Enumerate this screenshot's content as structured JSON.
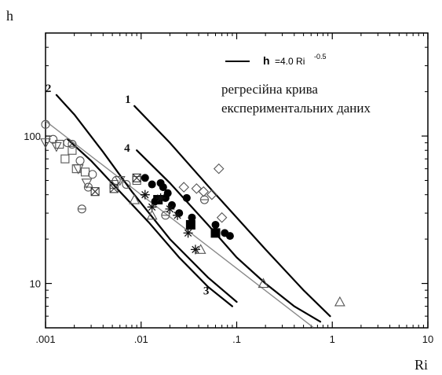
{
  "chart_data": {
    "type": "scatter",
    "xlabel": "Ri",
    "ylabel": "h",
    "xscale": "log",
    "yscale": "log",
    "xlim": [
      0.001,
      10
    ],
    "ylim": [
      5,
      500
    ],
    "x_ticks": [
      ".001",
      ".01",
      ".1",
      "1",
      "10"
    ],
    "y_ticks": [
      "10",
      "100"
    ],
    "legend": {
      "line_label": "h",
      "formula": "=4.0 Ri",
      "formula_exponent": "-0.5",
      "description_line1": "регресійна крива",
      "description_line2": "експериментальних даних"
    },
    "regression": {
      "coefficient": 4.0,
      "exponent": -0.5,
      "x": [
        0.001,
        0.63
      ]
    },
    "curves": [
      {
        "label": "1",
        "points": [
          [
            0.0085,
            160
          ],
          [
            0.02,
            90
          ],
          [
            0.05,
            46
          ],
          [
            0.1,
            28
          ],
          [
            0.2,
            17
          ],
          [
            0.5,
            9
          ],
          [
            0.95,
            6
          ]
        ]
      },
      {
        "label": "2",
        "points": [
          [
            0.0013,
            190
          ],
          [
            0.002,
            140
          ],
          [
            0.004,
            78
          ],
          [
            0.008,
            42
          ],
          [
            0.02,
            20
          ],
          [
            0.05,
            11
          ],
          [
            0.1,
            7.5
          ]
        ]
      },
      {
        "label": "3",
        "points": [
          [
            0.0017,
            95
          ],
          [
            0.003,
            68
          ],
          [
            0.006,
            42
          ],
          [
            0.012,
            26
          ],
          [
            0.025,
            15
          ],
          [
            0.05,
            9.5
          ],
          [
            0.09,
            7
          ]
        ]
      },
      {
        "label": "4",
        "points": [
          [
            0.009,
            80
          ],
          [
            0.02,
            48
          ],
          [
            0.05,
            25
          ],
          [
            0.1,
            15
          ],
          [
            0.2,
            10
          ],
          [
            0.4,
            7
          ],
          [
            0.75,
            5.5
          ]
        ]
      }
    ],
    "series": [
      {
        "marker": "open-circle",
        "points": [
          [
            0.001,
            120
          ],
          [
            0.0012,
            95
          ],
          [
            0.0017,
            90
          ],
          [
            0.0019,
            88
          ],
          [
            0.0023,
            68
          ],
          [
            0.0031,
            55
          ],
          [
            0.0055,
            50
          ],
          [
            0.007,
            47
          ]
        ]
      },
      {
        "marker": "open-square",
        "points": [
          [
            0.0014,
            88
          ],
          [
            0.0016,
            70
          ],
          [
            0.0019,
            80
          ],
          [
            0.0021,
            60
          ],
          [
            0.0026,
            57
          ],
          [
            0.0052,
            47
          ],
          [
            0.009,
            50
          ]
        ]
      },
      {
        "marker": "open-triangle-down",
        "points": [
          [
            0.001,
            90
          ],
          [
            0.0013,
            85
          ],
          [
            0.0022,
            60
          ],
          [
            0.0027,
            48
          ],
          [
            0.006,
            50
          ]
        ]
      },
      {
        "marker": "circle-bar",
        "points": [
          [
            0.0024,
            32
          ],
          [
            0.0028,
            45
          ],
          [
            0.018,
            29
          ],
          [
            0.046,
            37
          ]
        ]
      },
      {
        "marker": "crossed-square",
        "points": [
          [
            0.0033,
            42
          ],
          [
            0.0052,
            44
          ],
          [
            0.009,
            52
          ]
        ]
      },
      {
        "marker": "open-diamond",
        "points": [
          [
            0.028,
            45
          ],
          [
            0.038,
            44
          ],
          [
            0.045,
            42
          ],
          [
            0.055,
            40
          ],
          [
            0.065,
            60
          ],
          [
            0.07,
            28
          ]
        ]
      },
      {
        "marker": "filled-circle",
        "points": [
          [
            0.011,
            52
          ],
          [
            0.013,
            47
          ],
          [
            0.014,
            36
          ],
          [
            0.016,
            48
          ],
          [
            0.017,
            45
          ],
          [
            0.018,
            38
          ],
          [
            0.019,
            41
          ],
          [
            0.021,
            34
          ],
          [
            0.025,
            30
          ],
          [
            0.03,
            38
          ],
          [
            0.034,
            28
          ],
          [
            0.06,
            25
          ],
          [
            0.075,
            22
          ],
          [
            0.085,
            21
          ]
        ]
      },
      {
        "marker": "filled-square",
        "points": [
          [
            0.015,
            37
          ],
          [
            0.033,
            25
          ],
          [
            0.06,
            22
          ]
        ]
      },
      {
        "marker": "asterisk",
        "points": [
          [
            0.011,
            40
          ],
          [
            0.013,
            33
          ],
          [
            0.016,
            38
          ],
          [
            0.02,
            32
          ],
          [
            0.024,
            29
          ],
          [
            0.031,
            22
          ],
          [
            0.037,
            17
          ]
        ]
      },
      {
        "marker": "open-triangle",
        "points": [
          [
            0.0085,
            37
          ],
          [
            0.013,
            29
          ],
          [
            0.042,
            17
          ],
          [
            0.19,
            10
          ],
          [
            1.2,
            7.5
          ]
        ]
      }
    ]
  }
}
